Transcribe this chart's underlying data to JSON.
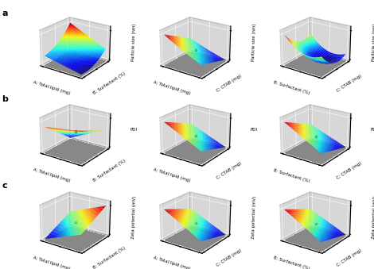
{
  "rows": [
    "a",
    "b",
    "c"
  ],
  "row_ylabels": [
    "Particle size (nm)",
    "PDI",
    "Zeta potential (mV)"
  ],
  "col_configs": [
    {
      "xlabel": "A: Total lipid (mg)",
      "ylabel": "B: Surfactant (%)"
    },
    {
      "xlabel": "A: Total lipid (mg)",
      "ylabel": "C: CTAB (mg)"
    },
    {
      "xlabel": "B: Surfactant (%)",
      "ylabel": "C: CTAB (mg)"
    }
  ],
  "pane_color": "#b0b0b0",
  "floor_color": "#888888",
  "grid_color": "#ffffff",
  "label_fontsize": 4.0,
  "row_label_fontsize": 8,
  "elev": 22,
  "azim": -55,
  "figsize": [
    4.7,
    3.39
  ],
  "dpi": 100
}
